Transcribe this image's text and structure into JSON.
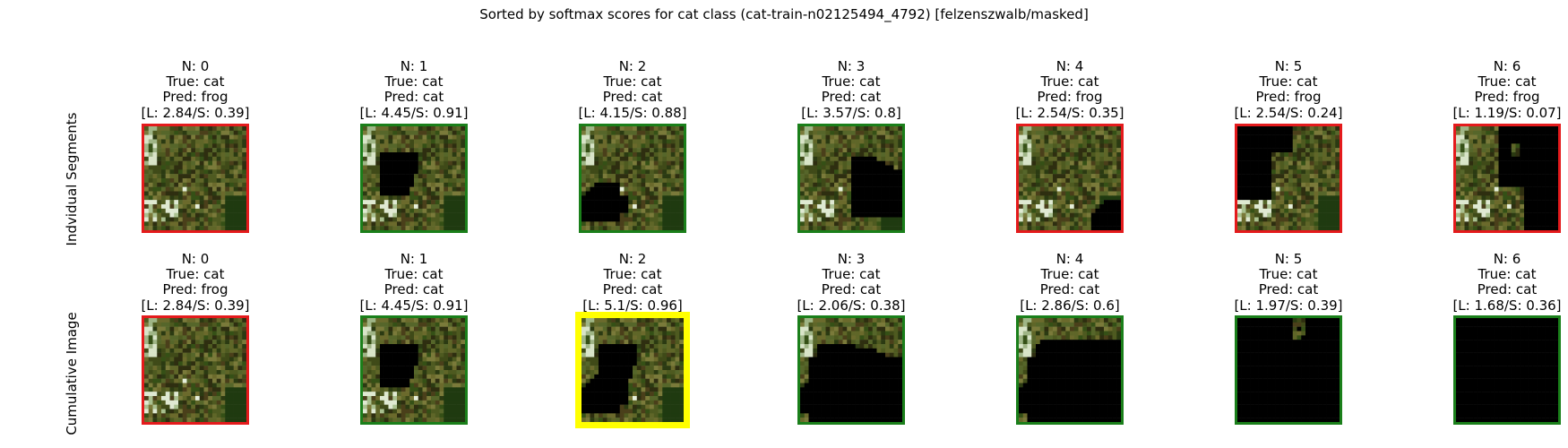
{
  "title": "Sorted by softmax scores for cat class (cat-train-n02125494_4792) [felzenszwalb/masked]",
  "rows": [
    {
      "label": "Indvidual Segments",
      "panels": [
        {
          "n": "N: 0",
          "true_label": "True: cat",
          "pred": "Pred: frog",
          "scores": "[L: 2.84/S: 0.39]",
          "border": "red",
          "mask": "none"
        },
        {
          "n": "N: 1",
          "true_label": "True: cat",
          "pred": "Pred: cat",
          "scores": "[L: 4.45/S: 0.91]",
          "border": "green",
          "mask": "seg1"
        },
        {
          "n": "N: 2",
          "true_label": "True: cat",
          "pred": "Pred: cat",
          "scores": "[L: 4.15/S: 0.88]",
          "border": "green",
          "mask": "seg2"
        },
        {
          "n": "N: 3",
          "true_label": "True: cat",
          "pred": "Pred: cat",
          "scores": "[L: 3.57/S: 0.8]",
          "border": "green",
          "mask": "seg3"
        },
        {
          "n": "N: 4",
          "true_label": "True: cat",
          "pred": "Pred: frog",
          "scores": "[L: 2.54/S: 0.35]",
          "border": "red",
          "mask": "seg4"
        },
        {
          "n": "N: 5",
          "true_label": "True: cat",
          "pred": "Pred: frog",
          "scores": "[L: 2.54/S: 0.24]",
          "border": "red",
          "mask": "seg5"
        },
        {
          "n": "N: 6",
          "true_label": "True: cat",
          "pred": "Pred: frog",
          "scores": "[L: 1.19/S: 0.07]",
          "border": "red",
          "mask": "seg6"
        }
      ]
    },
    {
      "label": "Cumulative Image",
      "panels": [
        {
          "n": "N: 0",
          "true_label": "True: cat",
          "pred": "Pred: frog",
          "scores": "[L: 2.84/S: 0.39]",
          "border": "red",
          "mask": "none"
        },
        {
          "n": "N: 1",
          "true_label": "True: cat",
          "pred": "Pred: cat",
          "scores": "[L: 4.45/S: 0.91]",
          "border": "green",
          "mask": "cum1"
        },
        {
          "n": "N: 2",
          "true_label": "True: cat",
          "pred": "Pred: cat",
          "scores": "[L: 5.1/S: 0.96]",
          "border": "yellow",
          "mask": "cum2"
        },
        {
          "n": "N: 3",
          "true_label": "True: cat",
          "pred": "Pred: cat",
          "scores": "[L: 2.06/S: 0.38]",
          "border": "green",
          "mask": "cum3"
        },
        {
          "n": "N: 4",
          "true_label": "True: cat",
          "pred": "Pred: cat",
          "scores": "[L: 2.86/S: 0.6]",
          "border": "green",
          "mask": "cum4"
        },
        {
          "n": "N: 5",
          "true_label": "True: cat",
          "pred": "Pred: cat",
          "scores": "[L: 1.97/S: 0.39]",
          "border": "green",
          "mask": "cum5"
        },
        {
          "n": "N: 6",
          "true_label": "True: cat",
          "pred": "Pred: cat",
          "scores": "[L: 1.68/S: 0.36]",
          "border": "green",
          "mask": "cum6"
        }
      ]
    }
  ],
  "colors": {
    "red": "#e41a1c",
    "green": "#1a7f1a",
    "yellow": "#ffff00",
    "mask": "#000000"
  }
}
